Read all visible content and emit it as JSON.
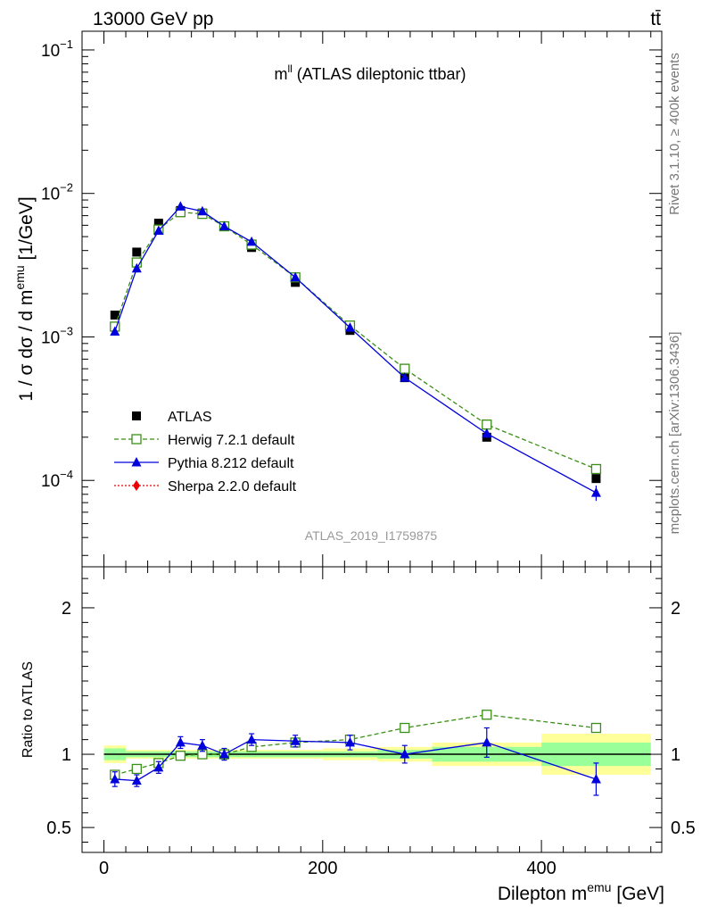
{
  "header": {
    "left": "13000 GeV pp",
    "right": "tt̄"
  },
  "side_labels": {
    "rivet": "Rivet 3.1.10, ≥ 400k events",
    "mcplots": "mcplots.cern.ch [arXiv:1306.3436]"
  },
  "chart_data": [
    {
      "type": "scatter",
      "title": "m^ll (ATLAS dileptonic ttbar)",
      "watermark": "ATLAS_2019_I1759875",
      "ylabel": "1 / σ dσ / d m^emu [1/GeV]",
      "yscale": "log",
      "ylim": [
        2.5e-05,
        0.135
      ],
      "xlim": [
        -20,
        510
      ],
      "yticks": [
        {
          "value": 0.1,
          "mantissa": "10",
          "exp": "−1"
        },
        {
          "value": 0.01,
          "mantissa": "10",
          "exp": "−2"
        },
        {
          "value": 0.001,
          "mantissa": "10",
          "exp": "−3"
        },
        {
          "value": 0.0001,
          "mantissa": "10",
          "exp": "−4"
        }
      ],
      "legend_position": "lower-left",
      "series": [
        {
          "name": "ATLAS",
          "color": "#000000",
          "marker": "square",
          "line": "none",
          "x": [
            10,
            30,
            50,
            70,
            90,
            110,
            135,
            175,
            225,
            275,
            350,
            450
          ],
          "y": [
            0.00142,
            0.0039,
            0.0062,
            0.0076,
            0.0073,
            0.0059,
            0.0042,
            0.0024,
            0.00111,
            0.00052,
            0.0002,
            0.000103
          ]
        },
        {
          "name": "Herwig 7.2.1 default",
          "color": "#3a8f16",
          "marker": "open-square",
          "line": "dashed",
          "x": [
            10,
            30,
            50,
            70,
            90,
            110,
            135,
            175,
            225,
            275,
            350,
            450
          ],
          "y": [
            0.00118,
            0.0033,
            0.0056,
            0.0074,
            0.0072,
            0.0059,
            0.0044,
            0.0026,
            0.0012,
            0.0006,
            0.000245,
            0.00012
          ]
        },
        {
          "name": "Pythia 8.212 default",
          "color": "#0000dd",
          "marker": "triangle",
          "line": "solid",
          "x": [
            10,
            30,
            50,
            70,
            90,
            110,
            135,
            175,
            225,
            275,
            350,
            450
          ],
          "y": [
            0.00109,
            0.003,
            0.0055,
            0.0081,
            0.0075,
            0.0059,
            0.0046,
            0.0026,
            0.00116,
            0.00052,
            0.000212,
            8.2e-05
          ],
          "yerr": [
            5e-05,
            0.0001,
            0.00015,
            0.0002,
            0.0002,
            0.00015,
            0.0001,
            6e-05,
            3e-05,
            2e-05,
            1.5e-05,
            1e-05
          ]
        },
        {
          "name": "Sherpa 2.2.0 default",
          "color": "#ee0000",
          "marker": "diamond",
          "line": "dotted",
          "x": [],
          "y": []
        }
      ]
    },
    {
      "type": "scatter",
      "ylabel": "Ratio to ATLAS",
      "xlabel": "Dilepton m^emu [GeV]",
      "xlim": [
        -20,
        510
      ],
      "ylim": [
        0.33,
        2.28
      ],
      "xticks": [
        0,
        200,
        400
      ],
      "yticks": [
        0.5,
        1,
        2
      ],
      "bands": {
        "edges": [
          0,
          20,
          40,
          60,
          80,
          100,
          120,
          150,
          200,
          250,
          300,
          400,
          500
        ],
        "outer": [
          0.06,
          0.03,
          0.03,
          0.03,
          0.03,
          0.03,
          0.03,
          0.03,
          0.04,
          0.05,
          0.08,
          0.14
        ],
        "inner": [
          0.04,
          0.02,
          0.02,
          0.02,
          0.02,
          0.02,
          0.02,
          0.02,
          0.02,
          0.03,
          0.05,
          0.08
        ],
        "outer_color": "#ffff99",
        "inner_color": "#99ff99"
      },
      "series": [
        {
          "name": "Herwig 7.2.1 default",
          "color": "#3a8f16",
          "marker": "open-square",
          "line": "dashed",
          "x": [
            10,
            30,
            50,
            70,
            90,
            110,
            135,
            175,
            225,
            275,
            350,
            450
          ],
          "y": [
            0.86,
            0.9,
            0.94,
            0.99,
            1.0,
            1.0,
            1.05,
            1.08,
            1.1,
            1.18,
            1.27,
            1.18
          ]
        },
        {
          "name": "Pythia 8.212 default",
          "color": "#0000dd",
          "marker": "triangle",
          "line": "solid",
          "x": [
            10,
            30,
            50,
            70,
            90,
            110,
            135,
            175,
            225,
            275,
            350,
            450
          ],
          "y": [
            0.83,
            0.82,
            0.91,
            1.08,
            1.06,
            1.0,
            1.1,
            1.09,
            1.08,
            1.0,
            1.08,
            0.83
          ],
          "yerr": [
            0.05,
            0.04,
            0.04,
            0.04,
            0.04,
            0.04,
            0.04,
            0.04,
            0.05,
            0.06,
            0.1,
            0.11
          ]
        }
      ]
    }
  ]
}
